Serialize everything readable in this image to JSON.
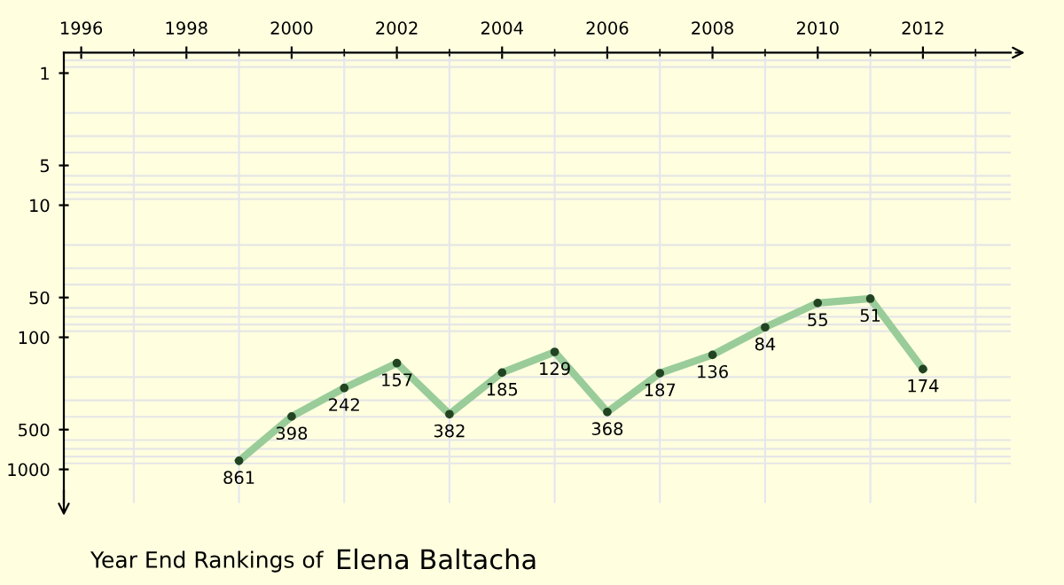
{
  "chart_data": {
    "type": "line",
    "title": "Year End Rankings of",
    "subtitle": "Elena Baltacha",
    "x": [
      1999,
      2000,
      2001,
      2002,
      2003,
      2004,
      2005,
      2006,
      2007,
      2008,
      2009,
      2010,
      2011,
      2012
    ],
    "series": [
      {
        "color": "#99cc99",
        "values": [
          861,
          398,
          242,
          157,
          382,
          185,
          129,
          368,
          187,
          136,
          84,
          55,
          51,
          174
        ]
      }
    ],
    "log": "y",
    "ylim": [
      1800,
      0.7
    ],
    "yticks": [
      1,
      5,
      10,
      50,
      100,
      500,
      1000
    ],
    "xlim": [
      1995.67,
      2013.67
    ],
    "xticks": [
      1996,
      1998,
      2000,
      2002,
      2004,
      2006,
      2008,
      2010,
      2012
    ],
    "grid": true,
    "marker": "circle",
    "line_style": "solid",
    "data_labels": true
  }
}
